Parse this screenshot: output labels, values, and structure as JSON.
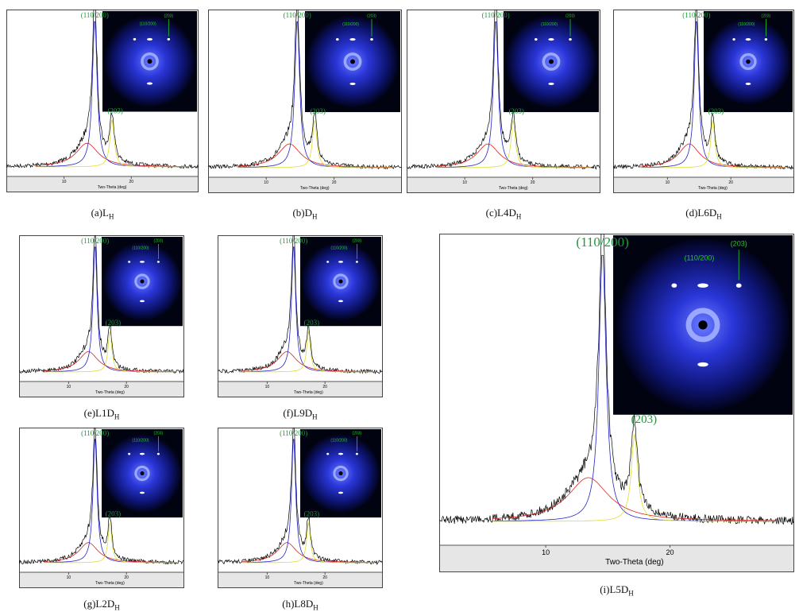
{
  "panels": [
    {
      "caption": "(a)L",
      "caption_sub": "H",
      "peak_main": "(110/200)",
      "peak_second": "(203)",
      "inset_main": "(110/200)",
      "inset_second": "(203)",
      "xticks": [
        "10",
        "20"
      ],
      "xlabel": "Two-Theta (deg)"
    },
    {
      "caption": "(b)D",
      "caption_sub": "H",
      "peak_main": "(110/200)",
      "peak_second": "(203)",
      "inset_main": "(110/200)",
      "inset_second": "(203)",
      "xticks": [
        "10",
        "20"
      ],
      "xlabel": "Two-Theta (deg)"
    },
    {
      "caption": "(c)L4D",
      "caption_sub": "H",
      "peak_main": "(110/200)",
      "peak_second": "(203)",
      "inset_main": "(110/200)",
      "inset_second": "(203)",
      "xticks": [
        "10",
        "20"
      ],
      "xlabel": "Two-Theta (deg)"
    },
    {
      "caption": "(d)L6D",
      "caption_sub": "H",
      "peak_main": "(110/200)",
      "peak_second": "(203)",
      "inset_main": "(110/200)",
      "inset_second": "(203)",
      "xticks": [
        "10",
        "20"
      ],
      "xlabel": "Two-Theta (deg)"
    },
    {
      "caption": "(e)L1D",
      "caption_sub": "H",
      "peak_main": "(110/200)",
      "peak_second": "(203)",
      "inset_main": "(110/200)",
      "inset_second": "(203)",
      "xticks": [
        "10",
        "20"
      ],
      "xlabel": "Two-Theta (deg)"
    },
    {
      "caption": "(f)L9D",
      "caption_sub": "H",
      "peak_main": "(110/200)",
      "peak_second": "(203)",
      "inset_main": "(110/200)",
      "inset_second": "(203)",
      "xticks": [
        "10",
        "20"
      ],
      "xlabel": "Two-Theta (deg)"
    },
    {
      "caption": "(g)L2D",
      "caption_sub": "H",
      "peak_main": "(110/200)",
      "peak_second": "(203)",
      "inset_main": "(110/200)",
      "inset_second": "(203)",
      "xticks": [
        "10",
        "20"
      ],
      "xlabel": "Two-Theta (deg)"
    },
    {
      "caption": "(h)L8D",
      "caption_sub": "H",
      "peak_main": "(110/200)",
      "peak_second": "(203)",
      "inset_main": "(110/200)",
      "inset_second": "(203)",
      "xticks": [
        "10",
        "20"
      ],
      "xlabel": "Two-Theta (deg)"
    },
    {
      "caption": "(i)L5D",
      "caption_sub": "H",
      "peak_main": "(110/200)",
      "peak_second": "(203)",
      "inset_main": "(110/200)",
      "inset_second": "(203)",
      "xticks": [
        "10",
        "20"
      ],
      "xlabel": "Two-Theta (deg)"
    }
  ]
}
